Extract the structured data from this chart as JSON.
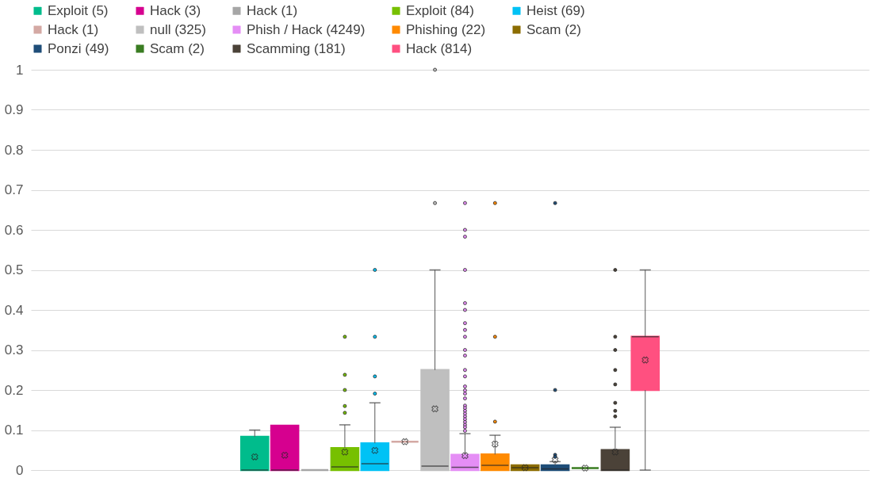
{
  "chart_data": {
    "type": "box",
    "categories": [
      null
    ],
    "ylim": [
      0,
      1
    ],
    "yticks": [
      0,
      0.1,
      0.2,
      0.3,
      0.4,
      0.5,
      0.6,
      0.7,
      0.8,
      0.9,
      1
    ],
    "grid": "y",
    "legend": "top",
    "tick_labels": "y",
    "series": [
      {
        "name": "Exploit (5)",
        "color": "#00bc8c",
        "boxes": [
          {
            "low": 0,
            "q1": 0,
            "median": 0,
            "q3": 0.083,
            "high": 0.1,
            "mean": 0.033
          }
        ]
      },
      {
        "name": "Hack (3)",
        "color": "#d6008f",
        "boxes": [
          {
            "low": 0,
            "q1": 0,
            "median": 0,
            "q3": 0.111,
            "high": 0.111,
            "mean": 0.037
          }
        ]
      },
      {
        "name": "Hack (1)",
        "color": "#a6a6a6",
        "boxes": [
          {
            "low": 0,
            "q1": 0,
            "median": 0,
            "q3": 0,
            "high": 0
          }
        ]
      },
      {
        "name": "Exploit (84)",
        "color": "#77c000",
        "boxes": [
          {
            "low": 0,
            "q1": 0,
            "median": 0.008,
            "q3": 0.055,
            "high": 0.113,
            "mean": 0.045,
            "outliers": [
              0.333,
              0.238,
              0.2,
              0.16,
              0.143
            ]
          }
        ]
      },
      {
        "name": "Heist (69)",
        "color": "#00c2f5",
        "boxes": [
          {
            "low": 0,
            "q1": 0,
            "median": 0.016,
            "q3": 0.067,
            "high": 0.168,
            "mean": 0.049,
            "outliers": [
              0.5,
              0.333,
              0.234,
              0.191
            ]
          }
        ]
      },
      {
        "name": "Hack (1)",
        "color": "#d4a9a4",
        "boxes": [
          {
            "low": 0.071,
            "q1": 0.071,
            "median": 0.071,
            "q3": 0.071,
            "high": 0.071,
            "mean": 0.071
          }
        ]
      },
      {
        "name": "null (325)",
        "color": "#bfbfbf",
        "boxes": [
          {
            "low": 0,
            "q1": 0,
            "median": 0.01,
            "q3": 0.25,
            "high": 0.5,
            "mean": 0.153,
            "outliers": [
              1,
              0.667
            ]
          }
        ]
      },
      {
        "name": "Phish / Hack (4249)",
        "color": "#e58ef5",
        "boxes": [
          {
            "low": 0,
            "q1": 0,
            "median": 0.007,
            "q3": 0.038,
            "high": 0.091,
            "mean": 0.036,
            "outliers": [
              0.667,
              0.6,
              0.583,
              0.5,
              0.417,
              0.4,
              0.367,
              0.35,
              0.333,
              0.3,
              0.286,
              0.25,
              0.234,
              0.209,
              0.199,
              0.191,
              0.179,
              0.161,
              0.155,
              0.148,
              0.141,
              0.134,
              0.127,
              0.12,
              0.113,
              0.107,
              0.098
            ]
          }
        ]
      },
      {
        "name": "Phishing (22)",
        "color": "#ff8a00",
        "boxes": [
          {
            "low": 0,
            "q1": 0,
            "median": 0.012,
            "q3": 0.039,
            "high": 0.087,
            "mean": 0.065,
            "outliers": [
              0.667,
              0.333,
              0.121
            ]
          }
        ]
      },
      {
        "name": "Scam (2)",
        "color": "#8c6d00",
        "boxes": [
          {
            "low": 0,
            "q1": 0,
            "median": 0.006,
            "q3": 0.012,
            "high": 0.012,
            "mean": 0.006
          }
        ]
      },
      {
        "name": "Ponzi (49)",
        "color": "#1f4e79",
        "boxes": [
          {
            "low": 0,
            "q1": 0,
            "median": 0.003,
            "q3": 0.012,
            "high": 0.021,
            "mean": 0.026,
            "outliers": [
              0.667,
              0.2,
              0.038,
              0.033
            ]
          }
        ]
      },
      {
        "name": "Scam (2)",
        "color": "#3a7d22",
        "boxes": [
          {
            "low": 0.005,
            "q1": 0.005,
            "median": 0.005,
            "q3": 0.005,
            "high": 0.005,
            "mean": 0.005
          }
        ]
      },
      {
        "name": "Scamming (181)",
        "color": "#4b4238",
        "boxes": [
          {
            "low": 0,
            "q1": 0,
            "median": 0,
            "q3": 0.05,
            "high": 0.107,
            "mean": 0.045,
            "outliers": [
              0.5,
              0.333,
              0.3,
              0.25,
              0.214,
              0.168,
              0.148,
              0.134
            ]
          }
        ]
      },
      {
        "name": "Hack (814)",
        "color": "#ff5080",
        "boxes": [
          {
            "low": 0,
            "q1": 0.2,
            "median": 0.333,
            "q3": 0.333,
            "high": 0.5,
            "mean": 0.275
          }
        ]
      }
    ]
  }
}
